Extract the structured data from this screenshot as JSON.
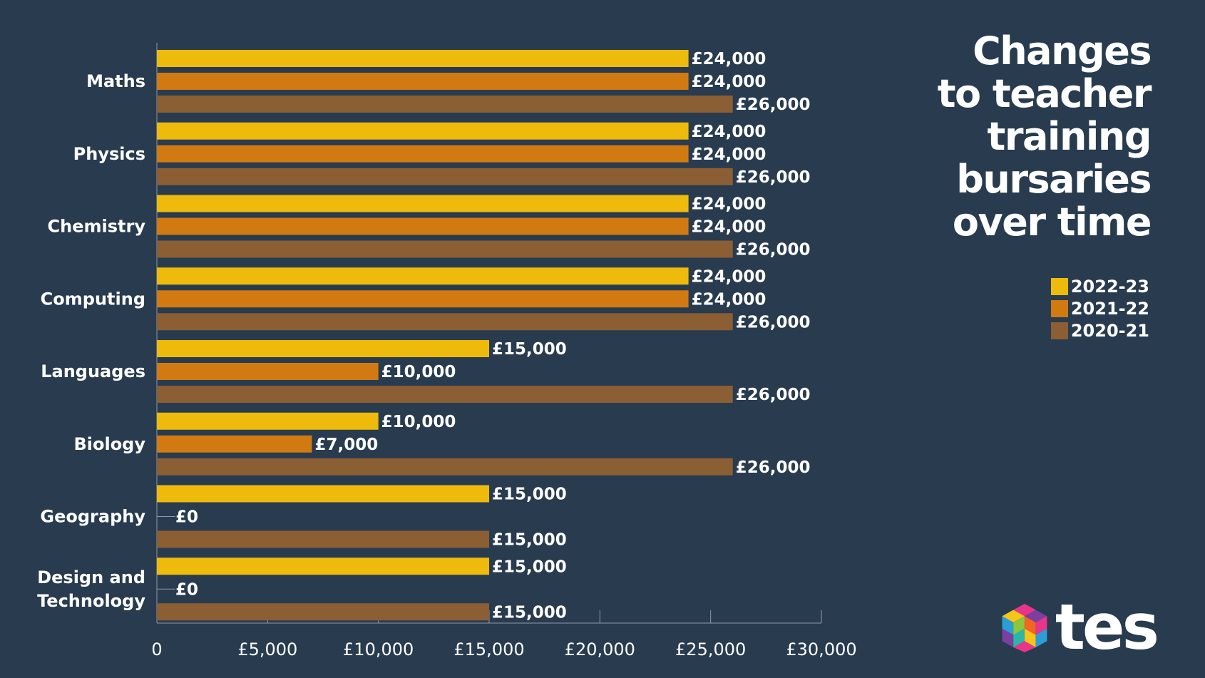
{
  "title_lines": [
    "Changes",
    "to teacher",
    "training",
    "bursaries",
    "over time"
  ],
  "legend": [
    {
      "label": "2022-23",
      "color": "#eebb0c"
    },
    {
      "label": "2021-22",
      "color": "#d17a12"
    },
    {
      "label": "2020-21",
      "color": "#8b5e33"
    }
  ],
  "brand": {
    "text": "tes"
  },
  "chart_data": {
    "type": "bar",
    "orientation": "horizontal",
    "title": "Changes to teacher training bursaries over time",
    "xlabel": "",
    "ylabel": "",
    "xlim": [
      0,
      30000
    ],
    "x_ticks": [
      0,
      5000,
      10000,
      15000,
      20000,
      25000,
      30000
    ],
    "x_tick_labels": [
      "0",
      "£5,000",
      "£10,000",
      "£15,000",
      "£20,000",
      "£25,000",
      "£30,000"
    ],
    "categories": [
      [
        "Maths"
      ],
      [
        "Physics"
      ],
      [
        "Chemistry"
      ],
      [
        "Computing"
      ],
      [
        "Languages"
      ],
      [
        "Biology"
      ],
      [
        "Geography"
      ],
      [
        "Design and",
        "Technology"
      ]
    ],
    "series": [
      {
        "name": "2022-23",
        "color": "#eebb0c",
        "values": [
          24000,
          24000,
          24000,
          24000,
          15000,
          10000,
          15000,
          15000
        ],
        "labels": [
          "£24,000",
          "£24,000",
          "£24,000",
          "£24,000",
          "£15,000",
          "£10,000",
          "£15,000",
          "£15,000"
        ]
      },
      {
        "name": "2021-22",
        "color": "#d17a12",
        "values": [
          24000,
          24000,
          24000,
          24000,
          10000,
          7000,
          0,
          0
        ],
        "labels": [
          "£24,000",
          "£24,000",
          "£24,000",
          "£24,000",
          "£10,000",
          "£7,000",
          "£0",
          "£0"
        ]
      },
      {
        "name": "2020-21",
        "color": "#8b5e33",
        "values": [
          26000,
          26000,
          26000,
          26000,
          26000,
          26000,
          15000,
          15000
        ],
        "labels": [
          "£26,000",
          "£26,000",
          "£26,000",
          "£26,000",
          "£26,000",
          "£26,000",
          "£15,000",
          "£15,000"
        ]
      }
    ],
    "grid": false,
    "legend_position": "right"
  }
}
